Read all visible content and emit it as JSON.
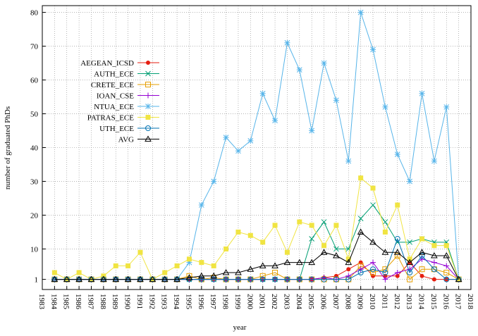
{
  "chart_data": {
    "type": "line",
    "xlabel": "year",
    "ylabel": "number of graduated PhDs",
    "x": [
      1984,
      1985,
      1986,
      1987,
      1988,
      1989,
      1990,
      1991,
      1992,
      1993,
      1994,
      1995,
      1996,
      1997,
      1998,
      1999,
      2000,
      2001,
      2002,
      2003,
      2004,
      2005,
      2006,
      2007,
      2008,
      2009,
      2010,
      2011,
      2012,
      2013,
      2014,
      2015,
      2016,
      2017
    ],
    "series": [
      {
        "name": "AEGEAN_ICSD",
        "color": "#e51e10",
        "marker": "filled-circle",
        "values": [
          1,
          1,
          1,
          1,
          1,
          1,
          1,
          1,
          1,
          1,
          1,
          1,
          1,
          1,
          1,
          1,
          1,
          1,
          1,
          1,
          1,
          1,
          1.5,
          2,
          4,
          6,
          2,
          2,
          2,
          6,
          2,
          1,
          1,
          1
        ]
      },
      {
        "name": "AUTH_ECE",
        "color": "#009e73",
        "marker": "cross",
        "values": [
          1,
          1,
          1,
          1,
          1,
          1,
          1,
          1,
          1,
          1,
          1,
          1,
          1,
          1,
          1,
          1,
          1,
          1,
          1,
          1,
          1,
          13,
          18,
          10,
          10,
          19,
          23,
          18,
          12,
          12,
          13,
          12,
          12,
          1
        ]
      },
      {
        "name": "CRETE_ECE",
        "color": "#e69f00",
        "marker": "open-square",
        "values": [
          1,
          1,
          1,
          1,
          1,
          1,
          1,
          1,
          1,
          1,
          1,
          2,
          1,
          1.5,
          1,
          1,
          1,
          2,
          3,
          1,
          1,
          1,
          1,
          1,
          1,
          5,
          3,
          4,
          8,
          1,
          4,
          4,
          3,
          1
        ]
      },
      {
        "name": "IOAN_CSE",
        "color": "#9400d3",
        "marker": "plus",
        "values": [
          1,
          1,
          1,
          1,
          1,
          1,
          1,
          1,
          1,
          1,
          1,
          1,
          1,
          1,
          1,
          1,
          1,
          1,
          1,
          1,
          1,
          1,
          1.5,
          1,
          2,
          4,
          6,
          1,
          3,
          4,
          7,
          6,
          5,
          1
        ]
      },
      {
        "name": "NTUA_ECE",
        "color": "#56b4e9",
        "marker": "star",
        "values": [
          1,
          1,
          1,
          1,
          1,
          1,
          1,
          1,
          1,
          1,
          1,
          6,
          23,
          30,
          43,
          39,
          42,
          56,
          48,
          71,
          63,
          45,
          65,
          54,
          36,
          80,
          69,
          52,
          38,
          30,
          56,
          36,
          52,
          1
        ]
      },
      {
        "name": "PATRAS_ECE",
        "color": "#f0e442",
        "marker": "filled-square",
        "values": [
          3,
          1,
          3,
          1,
          2,
          5,
          5,
          9,
          1,
          3,
          5,
          7,
          6,
          5,
          10,
          15,
          14,
          12,
          17,
          9,
          18,
          17,
          11,
          17,
          7,
          31,
          28,
          15,
          23,
          7,
          13,
          11,
          11,
          1
        ]
      },
      {
        "name": "UTH_ECE",
        "color": "#0072b2",
        "marker": "open-circle",
        "values": [
          1,
          1,
          1,
          1,
          1,
          1,
          1,
          1,
          1,
          1,
          1,
          1,
          1,
          1,
          1,
          1,
          1,
          1,
          1,
          1,
          1,
          1,
          1,
          1,
          1,
          3,
          4,
          3,
          13,
          3,
          8,
          4,
          1,
          1
        ]
      },
      {
        "name": "AVG",
        "color": "#000000",
        "marker": "open-triangle",
        "values": [
          1,
          1,
          1,
          1,
          1,
          1,
          1,
          1,
          1,
          1,
          1,
          1.5,
          2,
          2,
          3,
          3,
          4,
          5,
          5,
          6,
          6,
          6,
          9,
          8,
          6,
          15,
          12,
          9,
          9,
          6,
          9,
          8,
          8,
          1
        ]
      }
    ],
    "xlim": [
      1983,
      2018
    ],
    "xticks": [
      1983,
      1984,
      1985,
      1986,
      1987,
      1988,
      1989,
      1990,
      1991,
      1992,
      1993,
      1994,
      1995,
      1996,
      1997,
      1998,
      1999,
      2000,
      2001,
      2002,
      2003,
      2004,
      2005,
      2006,
      2007,
      2008,
      2009,
      2010,
      2011,
      2012,
      2013,
      2014,
      2015,
      2016,
      2017,
      2018
    ],
    "ylim": [
      -2,
      82
    ],
    "yticks": [
      1,
      10,
      20,
      30,
      40,
      50,
      60,
      70,
      80
    ],
    "grid": true,
    "legend": "upper-left"
  }
}
